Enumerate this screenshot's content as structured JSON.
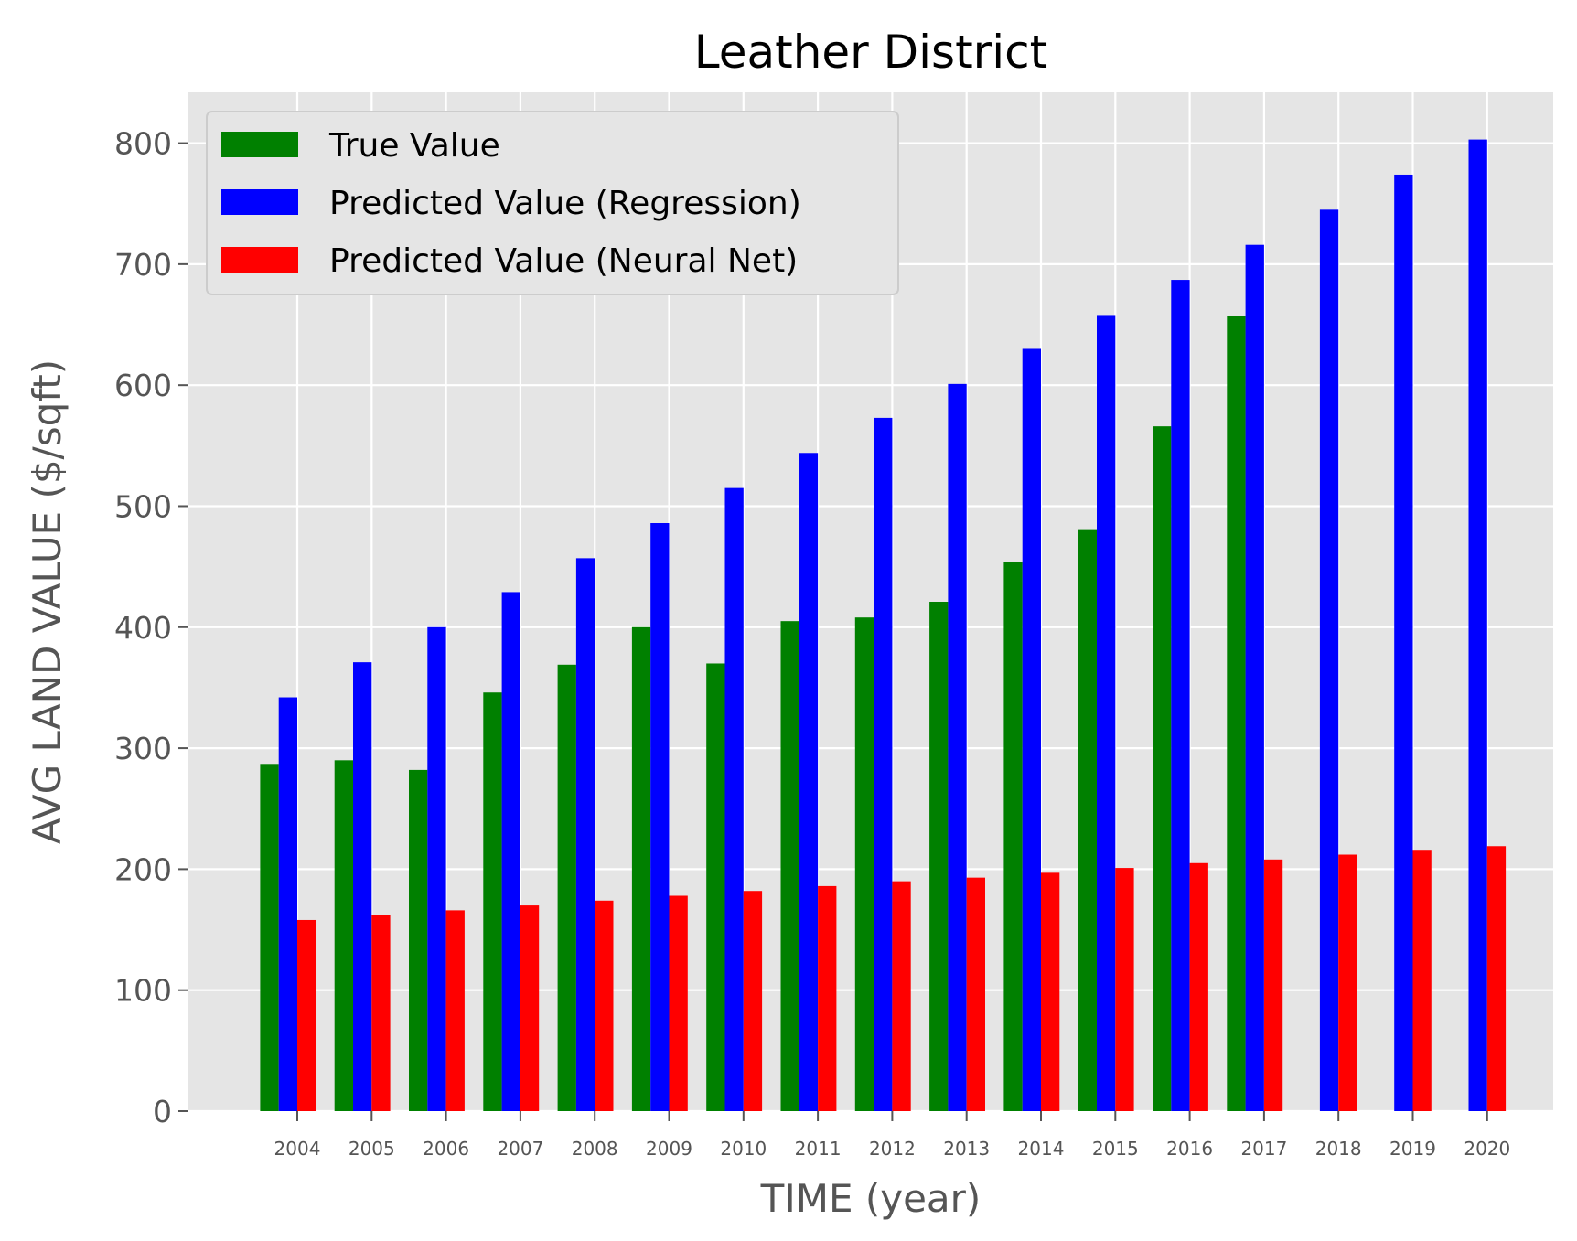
{
  "chart_data": {
    "type": "bar",
    "title": "Leather District",
    "xlabel": "TIME (year)",
    "ylabel": "AVG LAND VALUE ($/sqft)",
    "ylim": [
      0,
      842
    ],
    "yticks": [
      0,
      100,
      200,
      300,
      400,
      500,
      600,
      700,
      800
    ],
    "grid": true,
    "legend_position": "top-left",
    "categories": [
      "2004",
      "2005",
      "2006",
      "2007",
      "2008",
      "2009",
      "2010",
      "2011",
      "2012",
      "2013",
      "2014",
      "2015",
      "2016",
      "2017",
      "2018",
      "2019",
      "2020"
    ],
    "series": [
      {
        "name": "True Value",
        "color": "#008000",
        "values": [
          287,
          290,
          282,
          346,
          369,
          400,
          370,
          405,
          408,
          421,
          454,
          481,
          566,
          657,
          null,
          null,
          null
        ]
      },
      {
        "name": "Predicted Value (Regression)",
        "color": "#0000ff",
        "values": [
          342,
          371,
          400,
          429,
          457,
          486,
          515,
          544,
          573,
          601,
          630,
          658,
          687,
          716,
          745,
          774,
          803
        ]
      },
      {
        "name": "Predicted Value (Neural Net)",
        "color": "#ff0000",
        "values": [
          158,
          162,
          166,
          170,
          174,
          178,
          182,
          186,
          190,
          193,
          197,
          201,
          205,
          208,
          212,
          216,
          219
        ]
      }
    ]
  }
}
